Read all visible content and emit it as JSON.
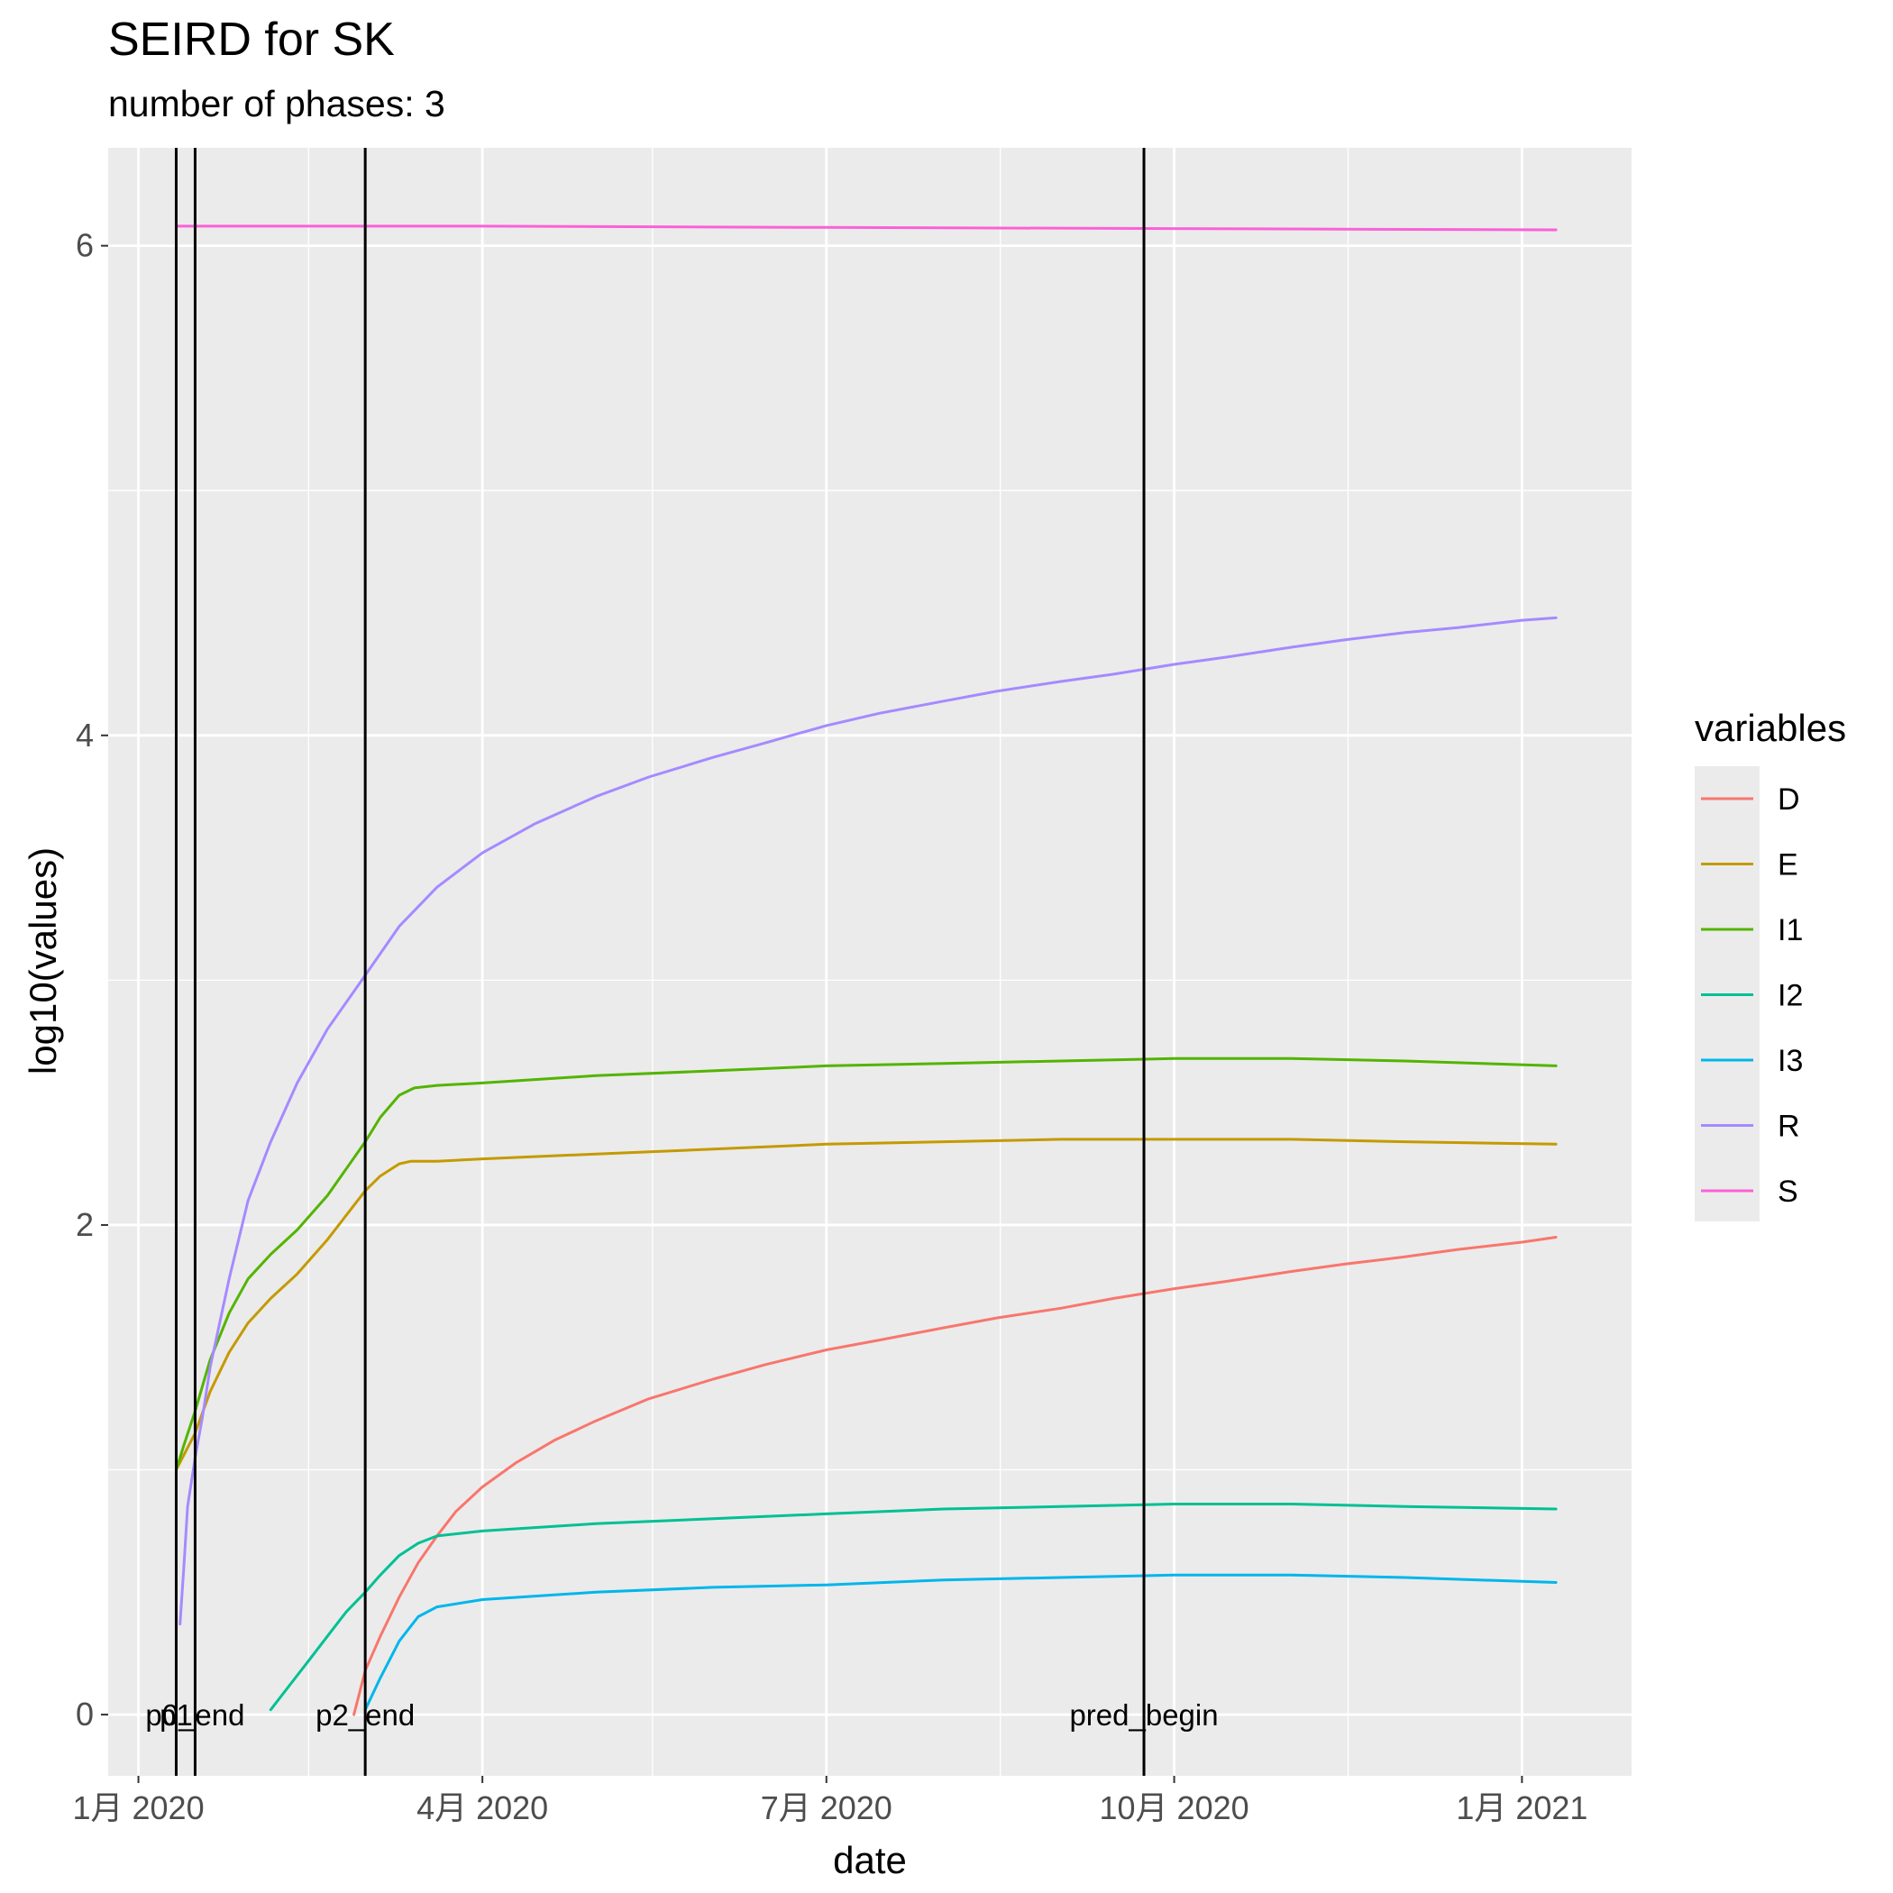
{
  "chart_data": {
    "type": "line",
    "title": "SEIRD for SK",
    "subtitle": "number of phases: 3",
    "xlabel": "date",
    "ylabel": "log10(values)",
    "x_axis": {
      "kind": "date",
      "range": [
        "2019-12-24",
        "2021-01-30"
      ],
      "ticks": [
        {
          "value": "2020-01-01",
          "label": "1月 2020"
        },
        {
          "value": "2020-04-01",
          "label": "4月 2020"
        },
        {
          "value": "2020-07-01",
          "label": "7月 2020"
        },
        {
          "value": "2020-10-01",
          "label": "10月 2020"
        },
        {
          "value": "2021-01-01",
          "label": "1月 2021"
        }
      ],
      "minor_ticks": [
        "2020-02-15",
        "2020-05-16",
        "2020-08-16",
        "2020-11-16"
      ]
    },
    "y_axis": {
      "range": [
        -0.25,
        6.4
      ],
      "ticks": [
        0,
        2,
        4,
        6
      ],
      "minor_ticks": [
        1,
        3,
        5
      ]
    },
    "grid": true,
    "legend": {
      "title": "variables",
      "position": "right",
      "entries": [
        "D",
        "E",
        "I1",
        "I2",
        "I3",
        "R",
        "S"
      ]
    },
    "vertical_lines": [
      {
        "date": "2020-01-11",
        "label": "p1"
      },
      {
        "date": "2020-01-16",
        "label": "p0_end"
      },
      {
        "date": "2020-03-01",
        "label": "p2_end"
      },
      {
        "date": "2020-09-23",
        "label": "pred_begin"
      }
    ],
    "series": [
      {
        "name": "D",
        "color": "#F8766D",
        "points": [
          [
            "2020-02-27",
            0.0
          ],
          [
            "2020-03-01",
            0.18
          ],
          [
            "2020-03-05",
            0.32
          ],
          [
            "2020-03-10",
            0.48
          ],
          [
            "2020-03-15",
            0.62
          ],
          [
            "2020-03-20",
            0.73
          ],
          [
            "2020-03-25",
            0.83
          ],
          [
            "2020-04-01",
            0.93
          ],
          [
            "2020-04-10",
            1.03
          ],
          [
            "2020-04-20",
            1.12
          ],
          [
            "2020-05-01",
            1.2
          ],
          [
            "2020-05-15",
            1.29
          ],
          [
            "2020-06-01",
            1.37
          ],
          [
            "2020-06-15",
            1.43
          ],
          [
            "2020-07-01",
            1.49
          ],
          [
            "2020-07-15",
            1.53
          ],
          [
            "2020-08-01",
            1.58
          ],
          [
            "2020-08-15",
            1.62
          ],
          [
            "2020-09-01",
            1.66
          ],
          [
            "2020-09-15",
            1.7
          ],
          [
            "2020-10-01",
            1.74
          ],
          [
            "2020-10-15",
            1.77
          ],
          [
            "2020-11-01",
            1.81
          ],
          [
            "2020-11-15",
            1.84
          ],
          [
            "2020-12-01",
            1.87
          ],
          [
            "2020-12-15",
            1.9
          ],
          [
            "2021-01-01",
            1.93
          ],
          [
            "2021-01-10",
            1.95
          ]
        ]
      },
      {
        "name": "E",
        "color": "#C49A00",
        "points": [
          [
            "2020-01-11",
            1.0
          ],
          [
            "2020-01-13",
            1.06
          ],
          [
            "2020-01-16",
            1.15
          ],
          [
            "2020-01-20",
            1.32
          ],
          [
            "2020-01-25",
            1.48
          ],
          [
            "2020-01-30",
            1.6
          ],
          [
            "2020-02-05",
            1.7
          ],
          [
            "2020-02-12",
            1.8
          ],
          [
            "2020-02-20",
            1.94
          ],
          [
            "2020-03-01",
            2.14
          ],
          [
            "2020-03-05",
            2.2
          ],
          [
            "2020-03-10",
            2.25
          ],
          [
            "2020-03-13",
            2.26
          ],
          [
            "2020-03-20",
            2.26
          ],
          [
            "2020-04-01",
            2.27
          ],
          [
            "2020-05-01",
            2.29
          ],
          [
            "2020-06-01",
            2.31
          ],
          [
            "2020-07-01",
            2.33
          ],
          [
            "2020-08-01",
            2.34
          ],
          [
            "2020-09-01",
            2.35
          ],
          [
            "2020-10-01",
            2.35
          ],
          [
            "2020-11-01",
            2.35
          ],
          [
            "2020-12-01",
            2.34
          ],
          [
            "2021-01-10",
            2.33
          ]
        ]
      },
      {
        "name": "I1",
        "color": "#53B400",
        "points": [
          [
            "2020-01-11",
            1.0
          ],
          [
            "2020-01-13",
            1.1
          ],
          [
            "2020-01-16",
            1.24
          ],
          [
            "2020-01-20",
            1.45
          ],
          [
            "2020-01-25",
            1.64
          ],
          [
            "2020-01-30",
            1.78
          ],
          [
            "2020-02-05",
            1.88
          ],
          [
            "2020-02-12",
            1.98
          ],
          [
            "2020-02-20",
            2.12
          ],
          [
            "2020-03-01",
            2.34
          ],
          [
            "2020-03-05",
            2.44
          ],
          [
            "2020-03-10",
            2.53
          ],
          [
            "2020-03-14",
            2.56
          ],
          [
            "2020-03-20",
            2.57
          ],
          [
            "2020-04-01",
            2.58
          ],
          [
            "2020-05-01",
            2.61
          ],
          [
            "2020-06-01",
            2.63
          ],
          [
            "2020-07-01",
            2.65
          ],
          [
            "2020-08-01",
            2.66
          ],
          [
            "2020-09-01",
            2.67
          ],
          [
            "2020-10-01",
            2.68
          ],
          [
            "2020-11-01",
            2.68
          ],
          [
            "2020-12-01",
            2.67
          ],
          [
            "2021-01-10",
            2.65
          ]
        ]
      },
      {
        "name": "I2",
        "color": "#00C094",
        "points": [
          [
            "2020-02-05",
            0.02
          ],
          [
            "2020-02-10",
            0.12
          ],
          [
            "2020-02-15",
            0.22
          ],
          [
            "2020-02-20",
            0.32
          ],
          [
            "2020-02-25",
            0.42
          ],
          [
            "2020-03-01",
            0.5
          ],
          [
            "2020-03-05",
            0.57
          ],
          [
            "2020-03-10",
            0.65
          ],
          [
            "2020-03-15",
            0.7
          ],
          [
            "2020-03-20",
            0.73
          ],
          [
            "2020-04-01",
            0.75
          ],
          [
            "2020-05-01",
            0.78
          ],
          [
            "2020-06-01",
            0.8
          ],
          [
            "2020-07-01",
            0.82
          ],
          [
            "2020-08-01",
            0.84
          ],
          [
            "2020-09-01",
            0.85
          ],
          [
            "2020-10-01",
            0.86
          ],
          [
            "2020-11-01",
            0.86
          ],
          [
            "2020-12-01",
            0.85
          ],
          [
            "2021-01-10",
            0.84
          ]
        ]
      },
      {
        "name": "I3",
        "color": "#00B6EB",
        "points": [
          [
            "2020-03-01",
            0.02
          ],
          [
            "2020-03-05",
            0.15
          ],
          [
            "2020-03-10",
            0.3
          ],
          [
            "2020-03-15",
            0.4
          ],
          [
            "2020-03-20",
            0.44
          ],
          [
            "2020-04-01",
            0.47
          ],
          [
            "2020-05-01",
            0.5
          ],
          [
            "2020-06-01",
            0.52
          ],
          [
            "2020-07-01",
            0.53
          ],
          [
            "2020-08-01",
            0.55
          ],
          [
            "2020-09-01",
            0.56
          ],
          [
            "2020-10-01",
            0.57
          ],
          [
            "2020-11-01",
            0.57
          ],
          [
            "2020-12-01",
            0.56
          ],
          [
            "2021-01-10",
            0.54
          ]
        ]
      },
      {
        "name": "R",
        "color": "#A58AFF",
        "points": [
          [
            "2020-01-12",
            0.37
          ],
          [
            "2020-01-13",
            0.6
          ],
          [
            "2020-01-14",
            0.85
          ],
          [
            "2020-01-16",
            1.05
          ],
          [
            "2020-01-18",
            1.22
          ],
          [
            "2020-01-20",
            1.42
          ],
          [
            "2020-01-25",
            1.78
          ],
          [
            "2020-01-30",
            2.1
          ],
          [
            "2020-02-05",
            2.34
          ],
          [
            "2020-02-12",
            2.58
          ],
          [
            "2020-02-20",
            2.8
          ],
          [
            "2020-03-01",
            3.02
          ],
          [
            "2020-03-10",
            3.22
          ],
          [
            "2020-03-20",
            3.38
          ],
          [
            "2020-04-01",
            3.52
          ],
          [
            "2020-04-15",
            3.64
          ],
          [
            "2020-05-01",
            3.75
          ],
          [
            "2020-05-15",
            3.83
          ],
          [
            "2020-06-01",
            3.91
          ],
          [
            "2020-06-15",
            3.97
          ],
          [
            "2020-07-01",
            4.04
          ],
          [
            "2020-07-15",
            4.09
          ],
          [
            "2020-08-01",
            4.14
          ],
          [
            "2020-08-15",
            4.18
          ],
          [
            "2020-09-01",
            4.22
          ],
          [
            "2020-09-15",
            4.25
          ],
          [
            "2020-10-01",
            4.29
          ],
          [
            "2020-10-15",
            4.32
          ],
          [
            "2020-11-01",
            4.36
          ],
          [
            "2020-11-15",
            4.39
          ],
          [
            "2020-12-01",
            4.42
          ],
          [
            "2020-12-15",
            4.44
          ],
          [
            "2021-01-01",
            4.47
          ],
          [
            "2021-01-10",
            4.48
          ]
        ]
      },
      {
        "name": "S",
        "color": "#FB61D7",
        "points": [
          [
            "2020-01-11",
            6.08
          ],
          [
            "2020-04-01",
            6.08
          ],
          [
            "2020-07-01",
            6.075
          ],
          [
            "2020-10-01",
            6.07
          ],
          [
            "2021-01-10",
            6.065
          ]
        ]
      }
    ]
  }
}
